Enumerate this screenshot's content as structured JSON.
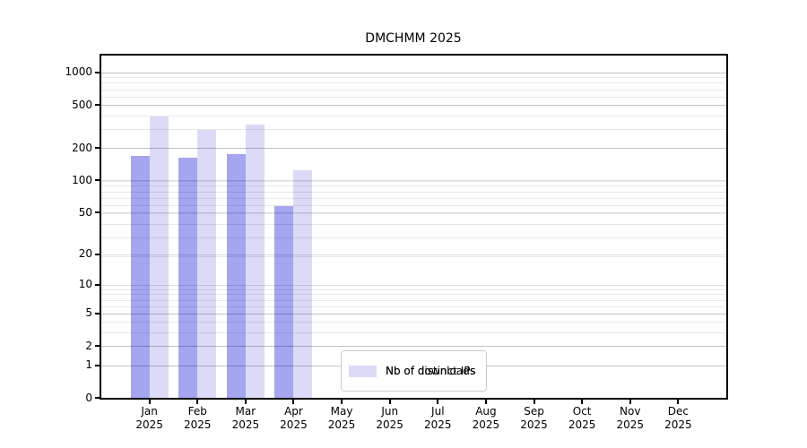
{
  "chart_data": {
    "type": "bar",
    "title": "DMCHMM 2025",
    "x_axis": {
      "categories": [
        "Jan",
        "Feb",
        "Mar",
        "Apr",
        "May",
        "Jun",
        "Jul",
        "Aug",
        "Sep",
        "Oct",
        "Nov",
        "Dec"
      ],
      "year": "2025"
    },
    "y_axis": {
      "ticks": [
        0,
        1,
        2,
        5,
        10,
        20,
        50,
        100,
        200,
        500,
        1000
      ],
      "scale": "log10(1+v)",
      "min": 0,
      "max": 1455,
      "grid": "horizontal, drawn above bars"
    },
    "series": [
      {
        "name": "Nb of distinct IPs",
        "color": "#a5a5f0",
        "values": [
          170,
          164,
          177,
          58,
          0,
          0,
          0,
          0,
          0,
          0,
          0,
          0
        ]
      },
      {
        "name": "Nb of downloads",
        "color": "#dbdbf8",
        "values": [
          390,
          295,
          330,
          125,
          0,
          0,
          0,
          0,
          0,
          0,
          0,
          0
        ]
      }
    ],
    "legend": {
      "position": "lower center",
      "border_color": "#cccccc"
    },
    "colors": {
      "axis": "#000000",
      "grid_major": "#c6c6c6",
      "grid_minor": "#e9e9e9",
      "text": "#000000"
    }
  }
}
